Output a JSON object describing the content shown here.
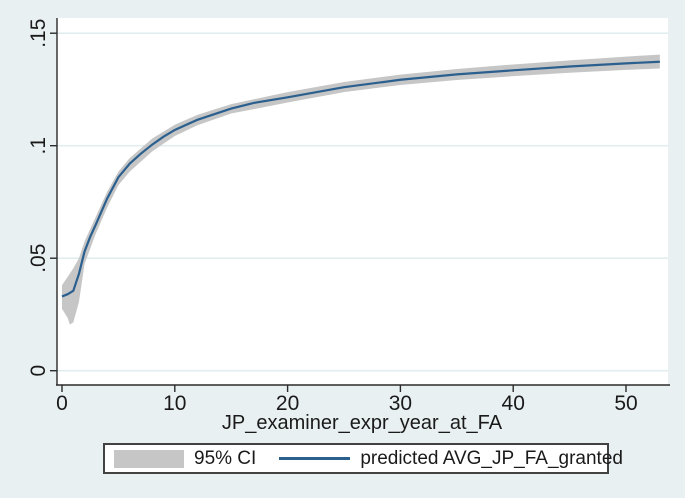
{
  "figure": {
    "background_color": "#e9f0f2",
    "plot_background": "#ffffff",
    "grid_color": "#e2edf0",
    "axis_color": "#2b2b2b",
    "band_color": "#c6c6c6",
    "line_color": "#2b5f8e"
  },
  "chart_data": {
    "type": "line",
    "title": "",
    "xlabel": "JP_examiner_expr_year_at_FA",
    "ylabel": "",
    "xlim": [
      -0.45,
      53.7
    ],
    "ylim": [
      -0.0064,
      0.1568
    ],
    "grid": "horizontal",
    "legend_position": "bottom",
    "xticks": {
      "values": [
        0,
        10,
        20,
        30,
        40,
        50
      ],
      "labels": [
        "0",
        "10",
        "20",
        "30",
        "40",
        "50"
      ]
    },
    "yticks": {
      "values": [
        0,
        0.05,
        0.1,
        0.15
      ],
      "labels": [
        "0",
        ".05",
        ".1",
        ".15"
      ]
    },
    "series": [
      {
        "name": "predicted AVG_JP_FA_granted",
        "type": "line",
        "points": [
          [
            0,
            0.033
          ],
          [
            0.5,
            0.034
          ],
          [
            1,
            0.0355
          ],
          [
            1.5,
            0.043
          ],
          [
            2,
            0.053
          ],
          [
            2.5,
            0.0595
          ],
          [
            3,
            0.065
          ],
          [
            4,
            0.0765
          ],
          [
            5,
            0.086
          ],
          [
            6,
            0.092
          ],
          [
            7,
            0.0965
          ],
          [
            8,
            0.1005
          ],
          [
            9,
            0.104
          ],
          [
            10,
            0.107
          ],
          [
            12,
            0.1115
          ],
          [
            15,
            0.1165
          ],
          [
            17,
            0.119
          ],
          [
            20,
            0.1215
          ],
          [
            25,
            0.126
          ],
          [
            30,
            0.1293
          ],
          [
            35,
            0.1317
          ],
          [
            40,
            0.1335
          ],
          [
            45,
            0.1352
          ],
          [
            50,
            0.1366
          ],
          [
            53,
            0.1373
          ]
        ]
      },
      {
        "name": "95% CI",
        "type": "band",
        "upper": [
          [
            0,
            0.038
          ],
          [
            1,
            0.0455
          ],
          [
            1.5,
            0.05
          ],
          [
            2,
            0.0575
          ],
          [
            3,
            0.0685
          ],
          [
            4,
            0.0795
          ],
          [
            5,
            0.0885
          ],
          [
            6,
            0.0945
          ],
          [
            8,
            0.1032
          ],
          [
            10,
            0.1093
          ],
          [
            12,
            0.1137
          ],
          [
            15,
            0.1185
          ],
          [
            20,
            0.1238
          ],
          [
            25,
            0.1283
          ],
          [
            30,
            0.1316
          ],
          [
            35,
            0.1341
          ],
          [
            40,
            0.1361
          ],
          [
            45,
            0.1379
          ],
          [
            50,
            0.1396
          ],
          [
            53,
            0.1405
          ]
        ],
        "lower": [
          [
            0,
            0.0275
          ],
          [
            0.5,
            0.0235
          ],
          [
            0.7,
            0.0205
          ],
          [
            1,
            0.0215
          ],
          [
            1.5,
            0.0305
          ],
          [
            2,
            0.0475
          ],
          [
            3,
            0.061
          ],
          [
            4,
            0.0725
          ],
          [
            5,
            0.0825
          ],
          [
            6,
            0.0885
          ],
          [
            8,
            0.0975
          ],
          [
            10,
            0.1043
          ],
          [
            12,
            0.1091
          ],
          [
            15,
            0.1143
          ],
          [
            20,
            0.1192
          ],
          [
            25,
            0.1238
          ],
          [
            30,
            0.127
          ],
          [
            35,
            0.1292
          ],
          [
            40,
            0.1309
          ],
          [
            45,
            0.1324
          ],
          [
            50,
            0.1337
          ],
          [
            53,
            0.1343
          ]
        ]
      }
    ],
    "legend": [
      {
        "label": "95% CI"
      },
      {
        "label": "predicted AVG_JP_FA_granted"
      }
    ]
  }
}
